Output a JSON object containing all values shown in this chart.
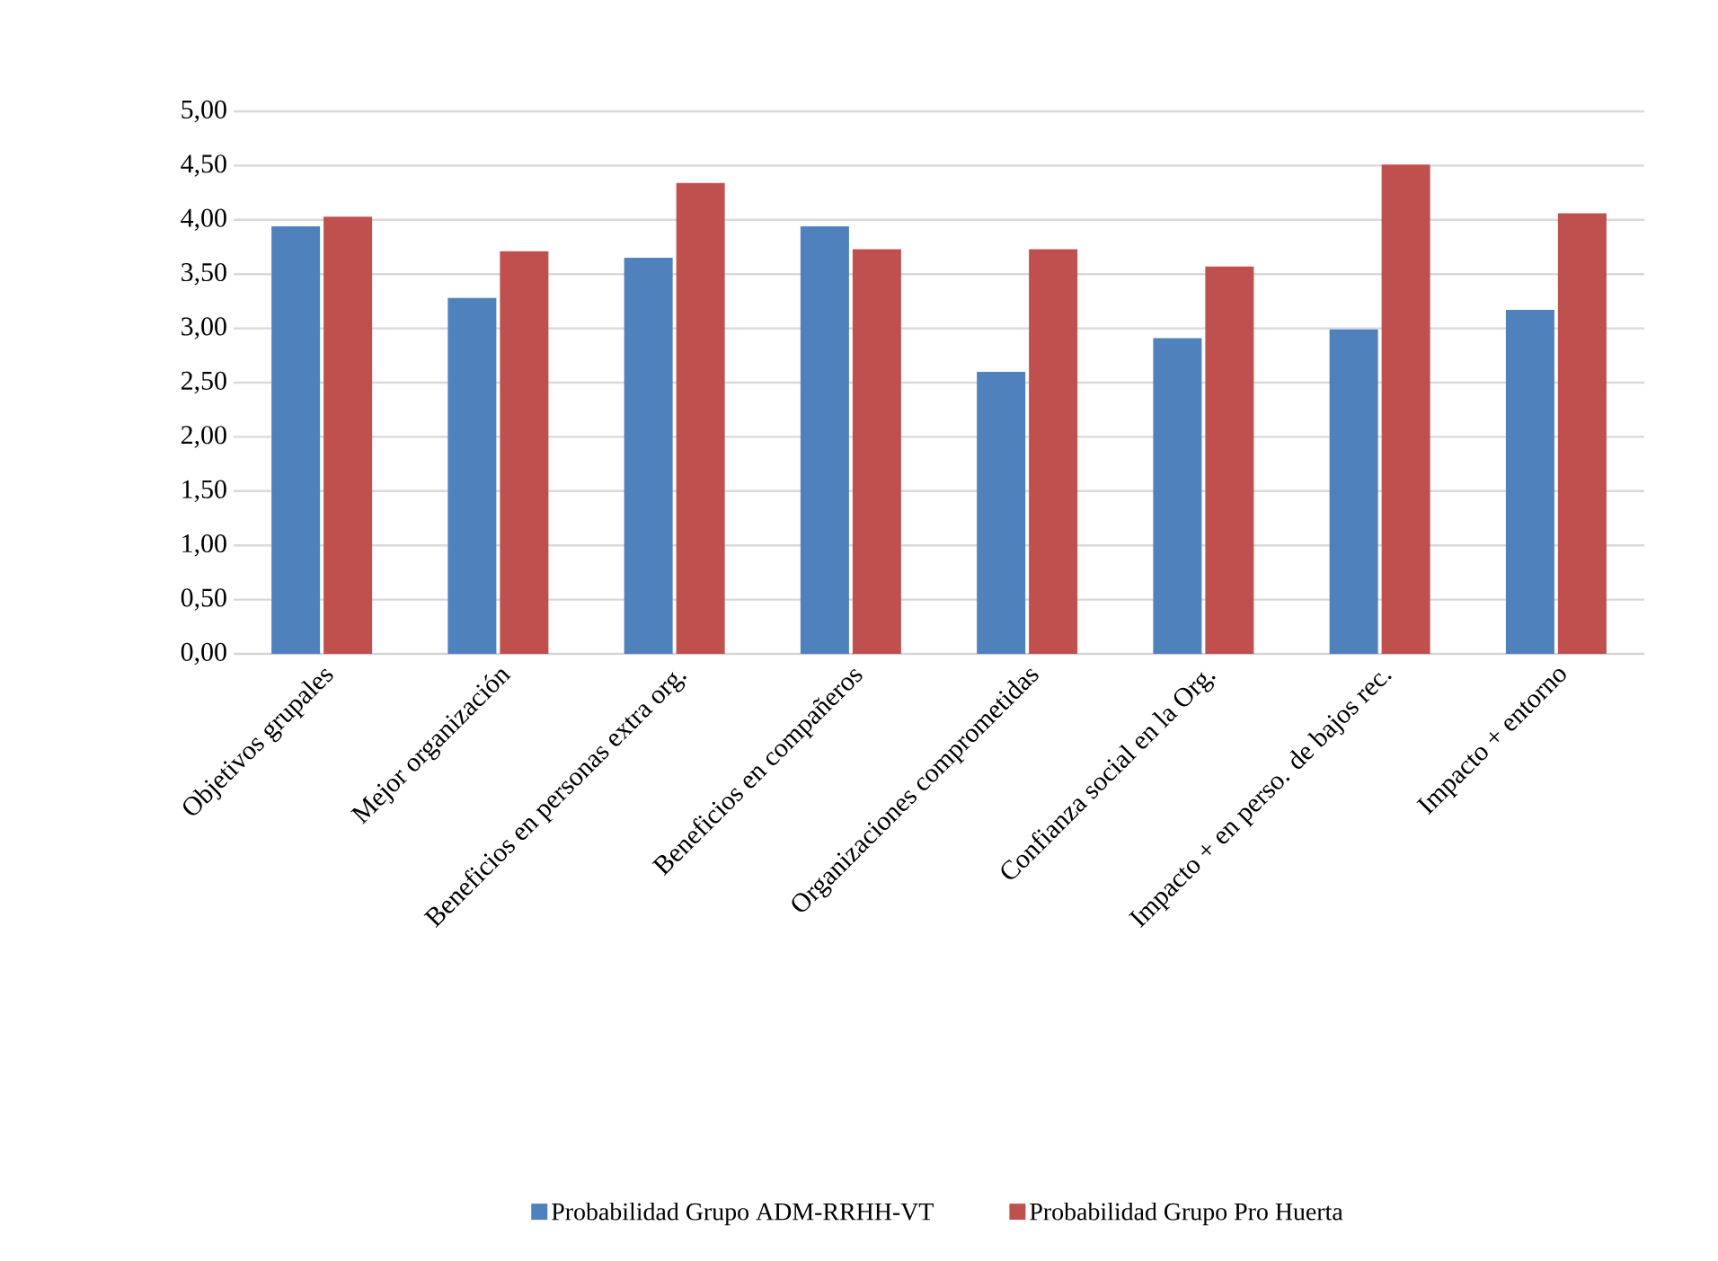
{
  "chart_data": {
    "type": "bar",
    "categories": [
      "Objetivos grupales",
      "Mejor organización",
      "Beneficios en personas extra org.",
      "Beneficios en compañeros",
      "Organizaciones comprometidas",
      "Confianza social en la Org.",
      "Impacto +  en perso. de bajos rec.",
      "Impacto + entorno"
    ],
    "series": [
      {
        "name": "Probabilidad Grupo ADM-RRHH-VT",
        "color": "#4f81bd",
        "values": [
          3.94,
          3.28,
          3.65,
          3.94,
          2.6,
          2.91,
          2.99,
          3.17
        ]
      },
      {
        "name": "Probabilidad Grupo Pro Huerta",
        "color": "#c0504d",
        "values": [
          4.03,
          3.71,
          4.34,
          3.73,
          3.73,
          3.57,
          4.51,
          4.06
        ]
      }
    ],
    "ylim": [
      0,
      5
    ],
    "yticks": [
      {
        "value": 0,
        "label": "0,00"
      },
      {
        "value": 0.5,
        "label": "0,50"
      },
      {
        "value": 1,
        "label": "1,00"
      },
      {
        "value": 1.5,
        "label": "1,50"
      },
      {
        "value": 2,
        "label": "2,00"
      },
      {
        "value": 2.5,
        "label": "2,50"
      },
      {
        "value": 3,
        "label": "3,00"
      },
      {
        "value": 3.5,
        "label": "3,50"
      },
      {
        "value": 4,
        "label": "4,00"
      },
      {
        "value": 4.5,
        "label": "4,50"
      },
      {
        "value": 5,
        "label": "5,00"
      }
    ],
    "grid": "y",
    "legend": "bottom"
  }
}
